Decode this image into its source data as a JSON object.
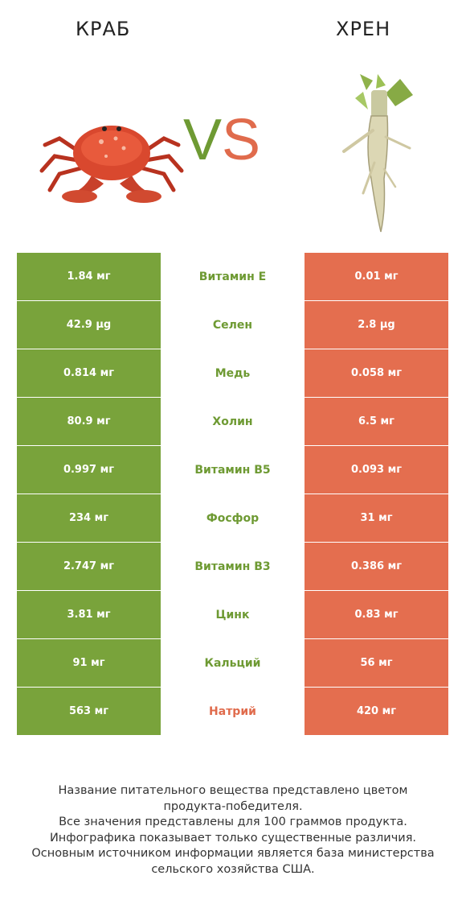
{
  "header": {
    "left_title": "КРАБ",
    "right_title": "ХРЕН",
    "vs_v": "V",
    "vs_s": "S",
    "colors": {
      "winner_left": "#79a33b",
      "winner_right": "#e46e4f",
      "label_green": "#6e9a33",
      "label_red": "#e06b4c"
    }
  },
  "images": {
    "left": "crab",
    "right": "horseradish-root"
  },
  "rows": [
    {
      "left": "1.84 мг",
      "nutrient": "Витамин E",
      "right": "0.01 мг",
      "winner": "left"
    },
    {
      "left": "42.9 µg",
      "nutrient": "Селен",
      "right": "2.8 µg",
      "winner": "left"
    },
    {
      "left": "0.814 мг",
      "nutrient": "Медь",
      "right": "0.058 мг",
      "winner": "left"
    },
    {
      "left": "80.9 мг",
      "nutrient": "Холин",
      "right": "6.5 мг",
      "winner": "left"
    },
    {
      "left": "0.997 мг",
      "nutrient": "Витамин B5",
      "right": "0.093 мг",
      "winner": "left"
    },
    {
      "left": "234 мг",
      "nutrient": "Фосфор",
      "right": "31 мг",
      "winner": "left"
    },
    {
      "left": "2.747 мг",
      "nutrient": "Витамин B3",
      "right": "0.386 мг",
      "winner": "left"
    },
    {
      "left": "3.81 мг",
      "nutrient": "Цинк",
      "right": "0.83 мг",
      "winner": "left"
    },
    {
      "left": "91 мг",
      "nutrient": "Кальций",
      "right": "56 мг",
      "winner": "left"
    },
    {
      "left": "563 мг",
      "nutrient": "Натрий",
      "right": "420 мг",
      "winner": "right"
    }
  ],
  "footer": {
    "lines": [
      "Название питательного вещества представлено цветом",
      "продукта-победителя.",
      "Все значения представлены для 100 граммов продукта.",
      "Инфографика показывает только существенные различия.",
      "Основным источником информации является база министерства",
      "сельского хозяйства США."
    ]
  }
}
